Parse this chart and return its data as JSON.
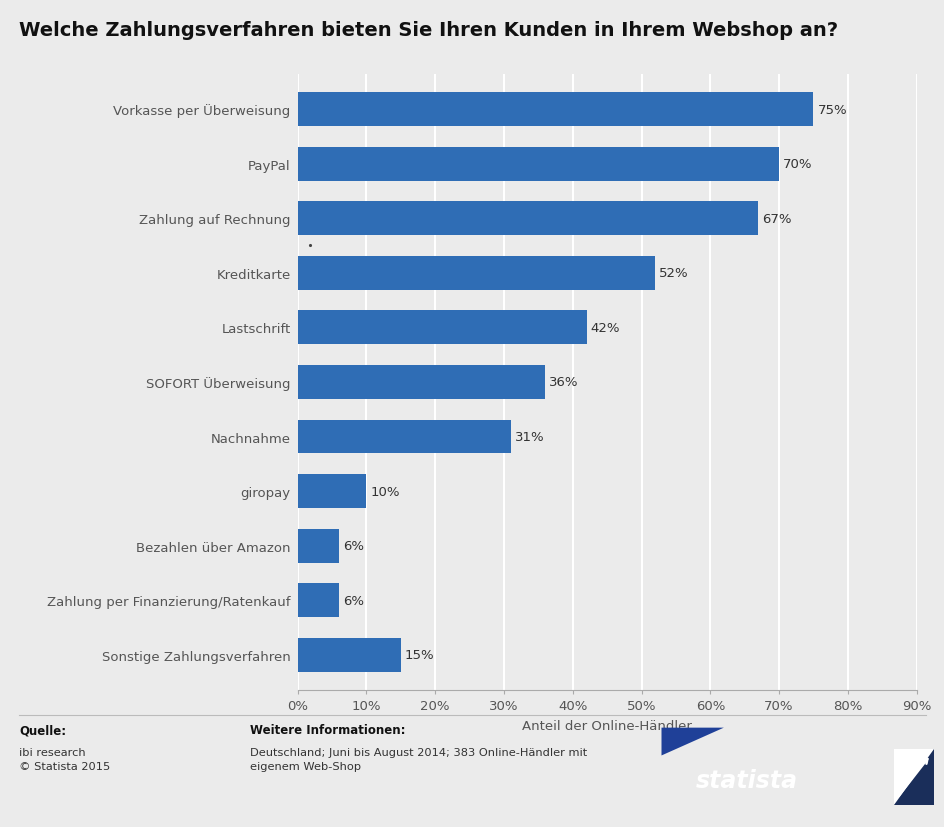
{
  "title": "Welche Zahlungsverfahren bieten Sie Ihren Kunden in Ihrem Webshop an?",
  "categories": [
    "Vorkasse per Überweisung",
    "PayPal",
    "Zahlung auf Rechnung",
    "Kreditkarte",
    "Lastschrift",
    "SOFORT Überweisung",
    "Nachnahme",
    "giropay",
    "Bezahlen über Amazon",
    "Zahlung per Finanzierung/Ratenkauf",
    "Sonstige Zahlungsverfahren"
  ],
  "values": [
    75,
    70,
    67,
    52,
    42,
    36,
    31,
    10,
    6,
    6,
    15
  ],
  "bar_color": "#2f6db5",
  "xlabel": "Anteil der Online-Händler",
  "xlim": [
    0,
    90
  ],
  "xticks": [
    0,
    10,
    20,
    30,
    40,
    50,
    60,
    70,
    80,
    90
  ],
  "xtick_labels": [
    "0%",
    "10%",
    "20%",
    "30%",
    "40%",
    "50%",
    "60%",
    "70%",
    "80%",
    "90%"
  ],
  "background_color": "#ebebeb",
  "grid_color": "#ffffff",
  "title_fontsize": 14,
  "axis_label_fontsize": 9.5,
  "tick_fontsize": 9.5,
  "bar_label_fontsize": 9.5,
  "ytick_color": "#555555",
  "source_label": "Quelle:",
  "source_text": "ibi research\n© Statista 2015",
  "info_label": "Weitere Informationen:",
  "info_text": "Deutschland; Juni bis August 2014; 383 Online-Händler mit\neigenem Web-Shop",
  "statista_dark_bg": "#1a2e5a",
  "statista_mid_bg": "#1f4098"
}
